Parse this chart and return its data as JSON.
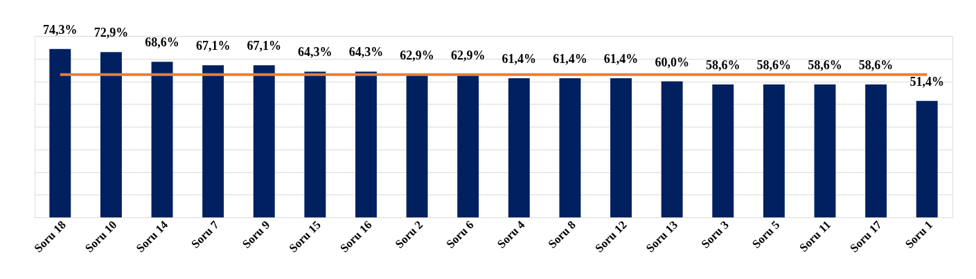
{
  "chart_data": {
    "type": "bar",
    "categories": [
      "Soru 18",
      "Soru 10",
      "Soru 14",
      "Soru 7",
      "Soru 9",
      "Soru 15",
      "Soru 16",
      "Soru 2",
      "Soru 6",
      "Soru 4",
      "Soru 8",
      "Soru 12",
      "Soru 13",
      "Soru 3",
      "Soru 5",
      "Soru 11",
      "Soru 17",
      "Soru 1"
    ],
    "values": [
      74.3,
      72.9,
      68.6,
      67.1,
      67.1,
      64.3,
      64.3,
      62.9,
      62.9,
      61.4,
      61.4,
      61.4,
      60.0,
      58.6,
      58.6,
      58.6,
      58.6,
      51.4
    ],
    "value_labels": [
      "74,3%",
      "72,9%",
      "68,6%",
      "67,1%",
      "67,1%",
      "64,3%",
      "64,3%",
      "62,9%",
      "62,9%",
      "61,4%",
      "61,4%",
      "61,4%",
      "60,0%",
      "58,6%",
      "58,6%",
      "58,6%",
      "58,6%",
      "51,4%"
    ],
    "color": "#002060",
    "ylim": [
      0,
      80
    ],
    "grid": "y",
    "tick_labels": "x",
    "ref_lines": [
      {
        "axis": "y",
        "value": 63.0,
        "color": "#ed7d31"
      }
    ]
  }
}
